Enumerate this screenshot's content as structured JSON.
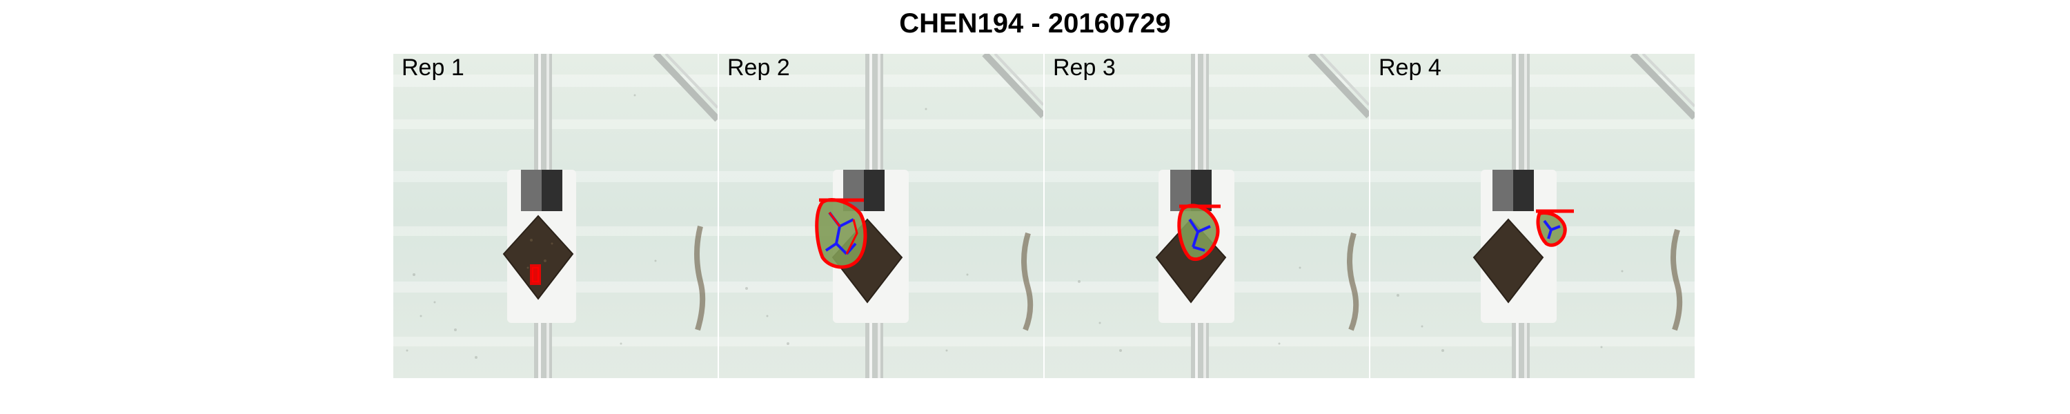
{
  "figure": {
    "title": "CHEN194 - 20160729"
  },
  "panels": [
    {
      "label": "Rep 1",
      "plant_detected": true
    },
    {
      "label": "Rep 2",
      "plant_detected": true
    },
    {
      "label": "Rep 3",
      "plant_detected": true
    },
    {
      "label": "Rep 4",
      "plant_detected": true
    }
  ],
  "colors": {
    "background": "#dfe9e2",
    "soil": "#3e3226",
    "contour": "#ff0000",
    "skeleton": "#1a1aff",
    "plant": "#7f9a55"
  }
}
